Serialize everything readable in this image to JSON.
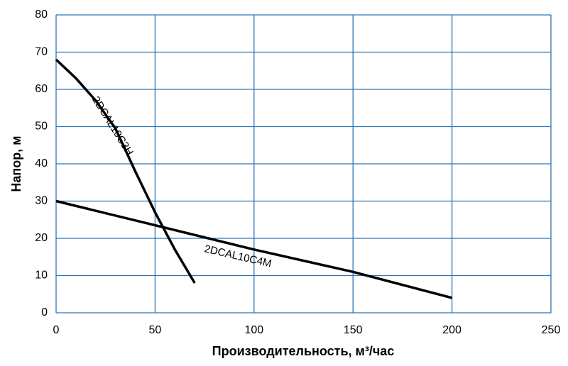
{
  "chart_data": {
    "type": "line",
    "xlabel": "Производительность, м³/час",
    "ylabel": "Напор, м",
    "xlim": [
      0,
      250
    ],
    "xticks": [
      0,
      50,
      100,
      150,
      200,
      250
    ],
    "ylim": [
      0,
      80
    ],
    "yticks": [
      0,
      10,
      20,
      30,
      40,
      50,
      60,
      70,
      80
    ],
    "grid": true,
    "grid_color": "#2e75b6",
    "series": [
      {
        "name": "2DCAL10C3H",
        "color": "#000000",
        "x": [
          0,
          10,
          20,
          30,
          40,
          50,
          60,
          70
        ],
        "values": [
          68,
          63,
          57,
          49.5,
          38,
          27,
          17,
          8
        ]
      },
      {
        "name": "2DCAL10C4M",
        "color": "#000000",
        "x": [
          0,
          50,
          100,
          150,
          200
        ],
        "values": [
          30,
          23.5,
          17,
          11,
          4
        ]
      }
    ]
  }
}
